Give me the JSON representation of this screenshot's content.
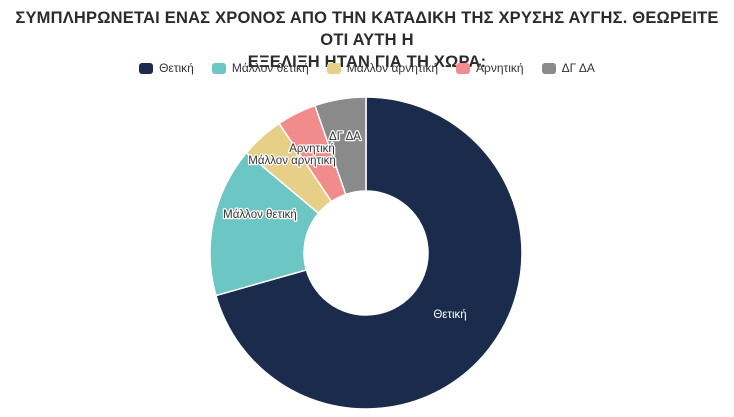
{
  "title": {
    "line1": "ΣΥΜΠΛΗΡΩΝΕΤΑΙ ΕΝΑΣ ΧΡΟΝΟΣ ΑΠΟ ΤΗΝ ΚΑΤΑΔΙΚΗ ΤΗΣ ΧΡΥΣΗΣ ΑΥΓΗΣ. ΘΕΩΡΕΙΤΕ ΟΤΙ ΑΥΤΗ Η",
    "line2": "ΕΞΕΛΙΞΗ ΗΤΑΝ ΓΙΑ ΤΗ ΧΩΡΑ:"
  },
  "chart_data": {
    "type": "pie",
    "subtype": "donut",
    "title": "ΣΥΜΠΛΗΡΩΝΕΤΑΙ ΕΝΑΣ ΧΡΟΝΟΣ ΑΠΟ ΤΗΝ ΚΑΤΑΔΙΚΗ ΤΗΣ ΧΡΥΣΗΣ ΑΥΓΗΣ. ΘΕΩΡΕΙΤΕ ΟΤΙ ΑΥΤΗ Η ΕΞΕΛΙΞΗ ΗΤΑΝ ΓΙΑ ΤΗ ΧΩΡΑ:",
    "legend_position": "top",
    "categories": [
      "Θετική",
      "Μάλλον θετική",
      "Μάλλον αρνητική",
      "Αρνητική",
      "ΔΓ ΔΑ"
    ],
    "values": [
      70.6,
      15.5,
      4.5,
      4.1,
      5.3
    ],
    "colors": [
      "#1b2b4b",
      "#6cc7c4",
      "#e7cf88",
      "#f28b8b",
      "#8a8a8a"
    ],
    "labels": [
      "Θετική",
      "Μάλλον θετική",
      "Μάλλον αρνητική",
      "Αρνητική",
      "ΔΓ ΔΑ"
    ]
  }
}
